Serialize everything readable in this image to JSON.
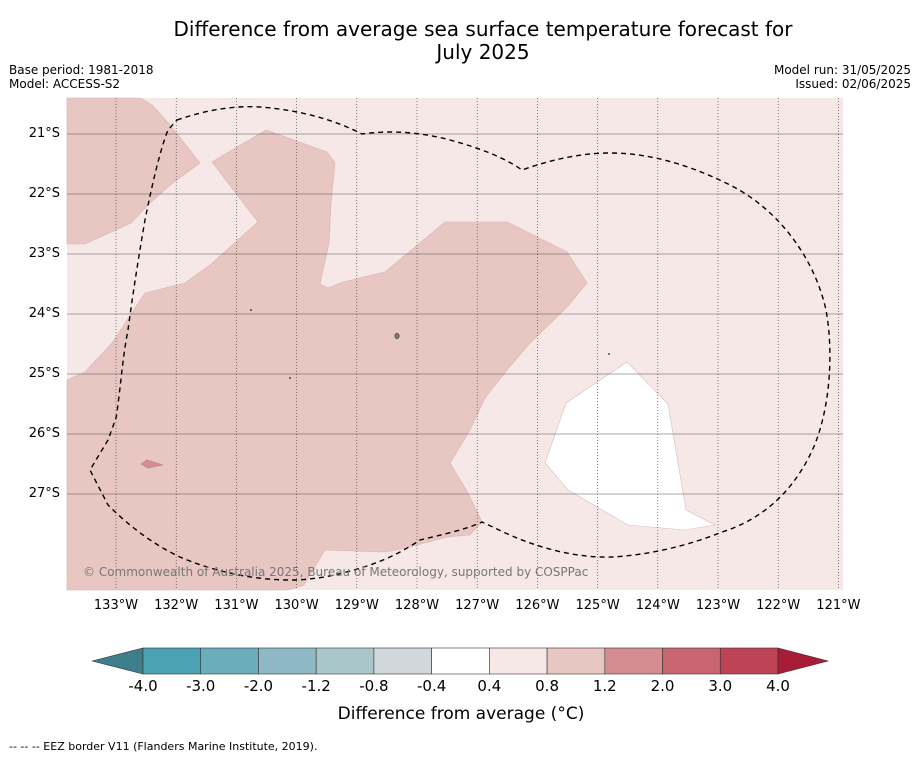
{
  "title_line1": "Difference from average sea surface temperature forecast for",
  "title_line2": "July 2025",
  "base_period": "Base period: 1981-2018",
  "model": "Model: ACCESS-S2",
  "model_run": "Model run: 31/05/2025",
  "issued": "Issued: 02/06/2025",
  "lat_labels": [
    "21°S",
    "22°S",
    "23°S",
    "24°S",
    "25°S",
    "26°S",
    "27°S"
  ],
  "lon_labels": [
    "133°W",
    "132°W",
    "131°W",
    "130°W",
    "129°W",
    "128°W",
    "127°W",
    "126°W",
    "125°W",
    "124°W",
    "123°W",
    "122°W",
    "121°W"
  ],
  "copyright": "© Commonwealth of Australia 2025, Bureau of Meteorology, supported by COSPPac",
  "colorbar": {
    "ticks": [
      "-4.0",
      "-3.0",
      "-2.0",
      "-1.2",
      "-0.8",
      "-0.4",
      "0.4",
      "0.8",
      "1.2",
      "2.0",
      "3.0",
      "4.0"
    ],
    "colors": [
      "#3d7f8c",
      "#4aa2b3",
      "#6cadbb",
      "#8db8c4",
      "#a9c6cb",
      "#d0d8db",
      "#ffffff",
      "#f5e8e7",
      "#e8c6c2",
      "#d58c92",
      "#c96570",
      "#be4455",
      "#a81c38"
    ],
    "title": "Difference from average (",
    "title_unit": "°C",
    "title_close": ")"
  },
  "legend_note": "--  --  -- EEZ border V11 (Flanders Marine Institute, 2019).",
  "map_colors": {
    "ocean_0_4_to_0_8": "#f5e8e7",
    "ocean_0_8_to_1_2": "#e8c6c2",
    "ocean_neutral": "#ffffff",
    "ocean_1_2_to_2_0": "#d58c92"
  }
}
